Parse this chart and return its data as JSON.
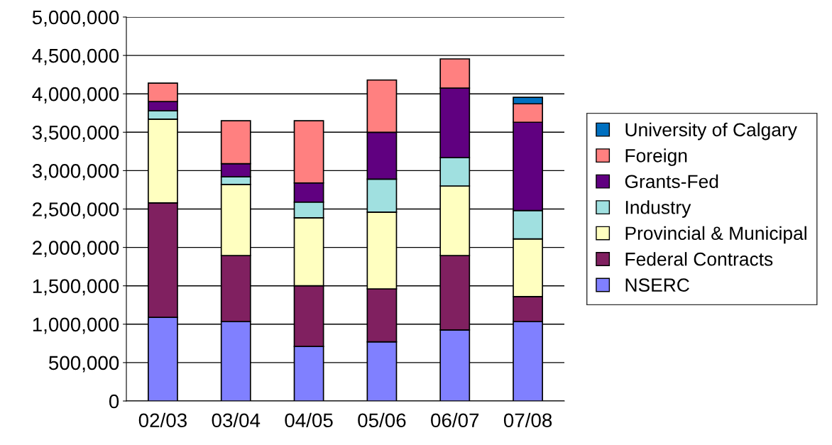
{
  "chart_data": {
    "type": "bar",
    "stacked": true,
    "categories": [
      "02/03",
      "03/04",
      "04/05",
      "05/06",
      "06/07",
      "07/08"
    ],
    "series": [
      {
        "name": "NSERC",
        "color": "#8080ff",
        "values": [
          1090000,
          1035000,
          710000,
          770000,
          925000,
          1035000
        ]
      },
      {
        "name": "Federal Contracts",
        "color": "#802060",
        "values": [
          1490000,
          860000,
          790000,
          690000,
          970000,
          325000
        ]
      },
      {
        "name": "Provincial & Municipal",
        "color": "#ffffc0",
        "values": [
          1090000,
          925000,
          885000,
          1000000,
          905000,
          750000
        ]
      },
      {
        "name": "Industry",
        "color": "#a0e0e0",
        "values": [
          110000,
          100000,
          205000,
          430000,
          370000,
          370000
        ]
      },
      {
        "name": "Grants-Fed",
        "color": "#600080",
        "values": [
          120000,
          170000,
          250000,
          610000,
          905000,
          1150000
        ]
      },
      {
        "name": "Foreign",
        "color": "#ff8080",
        "values": [
          240000,
          560000,
          810000,
          680000,
          380000,
          240000
        ]
      },
      {
        "name": "University of Calgary",
        "color": "#0070c0",
        "values": [
          null,
          null,
          null,
          null,
          null,
          85000
        ]
      }
    ],
    "ylim": [
      0,
      5000000
    ],
    "yticks": [
      {
        "value": 0,
        "label": "0"
      },
      {
        "value": 500000,
        "label": "500,000"
      },
      {
        "value": 1000000,
        "label": "1,000,000"
      },
      {
        "value": 1500000,
        "label": "1,500,000"
      },
      {
        "value": 2000000,
        "label": "2,000,000"
      },
      {
        "value": 2500000,
        "label": "2,500,000"
      },
      {
        "value": 3000000,
        "label": "3,000,000"
      },
      {
        "value": 3500000,
        "label": "3,500,000"
      },
      {
        "value": 4000000,
        "label": "4,000,000"
      },
      {
        "value": 4500000,
        "label": "4,500,000"
      },
      {
        "value": 5000000,
        "label": "5,000,000"
      }
    ],
    "grid": "y",
    "legend": "right"
  }
}
